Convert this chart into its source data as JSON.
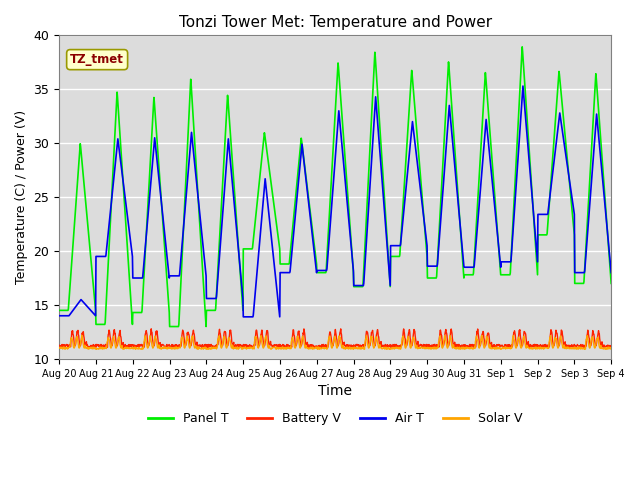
{
  "title": "Tonzi Tower Met: Temperature and Power",
  "xlabel": "Time",
  "ylabel": "Temperature (C) / Power (V)",
  "ylim": [
    10,
    40
  ],
  "yticks": [
    10,
    15,
    20,
    25,
    30,
    35,
    40
  ],
  "tz_label": "TZ_tmet",
  "num_days": 15,
  "pts_per_day": 96,
  "xtick_labels": [
    "Aug 20",
    "Aug 21",
    "Aug 22",
    "Aug 23",
    "Aug 24",
    "Aug 25",
    "Aug 26",
    "Aug 27",
    "Aug 28",
    "Aug 29",
    "Aug 30",
    "Aug 31",
    "Sep 1",
    "Sep 2",
    "Sep 3",
    "Sep 4"
  ],
  "panel_T_color": "#00EE00",
  "battery_V_color": "#FF2200",
  "air_T_color": "#0000EE",
  "solar_V_color": "#FFA500",
  "bg_color": "#DCDCDC",
  "legend_labels": [
    "Panel T",
    "Battery V",
    "Air T",
    "Solar V"
  ],
  "panel_T_peaks": [
    30.0,
    34.8,
    34.3,
    36.0,
    34.5,
    31.0,
    30.5,
    37.5,
    38.5,
    36.8,
    37.6,
    36.6,
    39.0,
    36.7,
    36.5
  ],
  "panel_T_mins": [
    14.5,
    13.2,
    14.3,
    13.0,
    14.5,
    20.2,
    18.8,
    18.0,
    16.7,
    19.5,
    17.5,
    17.8,
    17.8,
    21.5,
    17.0
  ],
  "air_T_peaks": [
    15.5,
    30.4,
    30.5,
    31.0,
    30.4,
    26.7,
    29.9,
    33.0,
    34.3,
    32.0,
    33.5,
    32.2,
    35.3,
    32.8,
    32.7
  ],
  "air_T_mins": [
    14.0,
    19.5,
    17.5,
    17.7,
    15.6,
    13.9,
    18.0,
    18.2,
    16.8,
    20.5,
    18.6,
    18.5,
    19.0,
    23.4,
    18.0
  ],
  "battery_base": 11.2,
  "battery_peak": 12.8,
  "solar_base": 11.0,
  "solar_peak": 12.2,
  "figsize": [
    6.4,
    4.8
  ],
  "dpi": 100
}
